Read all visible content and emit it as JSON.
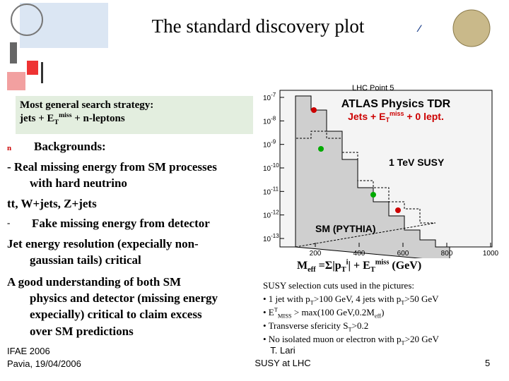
{
  "header": {
    "title": "The standard discovery plot"
  },
  "strategy_box": {
    "line1": "Most general search strategy:",
    "line2": [
      "jets + E",
      "T",
      "miss",
      " + n-leptons"
    ]
  },
  "body": {
    "bullet": "n",
    "backgrounds": "Backgrounds:",
    "lines": [
      "- Real missing energy from SM processes",
      "with hard neutrino",
      "tt, W+jets, Z+jets"
    ],
    "dash": "-",
    "fake": "Fake missing energy from detector",
    "lines2": [
      "Jet energy resolution (expecially non-",
      "gaussian  tails) critical",
      "A good understanding of both SM",
      "physics and detector (missing energy",
      "expecially) critical to claim excess",
      "over SM predictions"
    ]
  },
  "plot": {
    "header": "LHC Point 5",
    "title": "ATLAS Physics TDR",
    "subtitle": [
      "Jets + E",
      "T",
      "miss",
      " + 0 lept."
    ],
    "signal_label": "1 TeV SUSY",
    "background_label": "SM (PYTHIA)",
    "y_tick_base": "10",
    "y_tick_exponents": [
      "-7",
      "-8",
      "-9",
      "-10",
      "-11",
      "-12",
      "-13"
    ],
    "x_ticks": [
      "200",
      "400",
      "600",
      "800",
      "1000"
    ],
    "x_label": [
      "M",
      "eff",
      " =",
      "Σ",
      "|p",
      "T",
      "i",
      "| + E",
      "T",
      "miss",
      " (GeV)"
    ]
  },
  "notes": {
    "heading": "SUSY selection cuts used in the pictures:",
    "items": [
      [
        "• 1 jet with p",
        "T",
        ">100 GeV, 4 jets with p",
        "T",
        ">50 GeV"
      ],
      [
        "• E",
        "T",
        "MISS",
        " > max(100 GeV,0.2M",
        "eff",
        ")"
      ],
      [
        "• Transverse sfericity S",
        "T",
        ">0.2"
      ],
      [
        "• No isolated muon or electron with p",
        "T",
        ">20 GeV"
      ]
    ]
  },
  "footer": {
    "event": "IFAE 2006",
    "place_date": "Pavia, 19/04/2006",
    "author": "T. Lari",
    "talk": "SUSY at LHC",
    "page": "5"
  }
}
